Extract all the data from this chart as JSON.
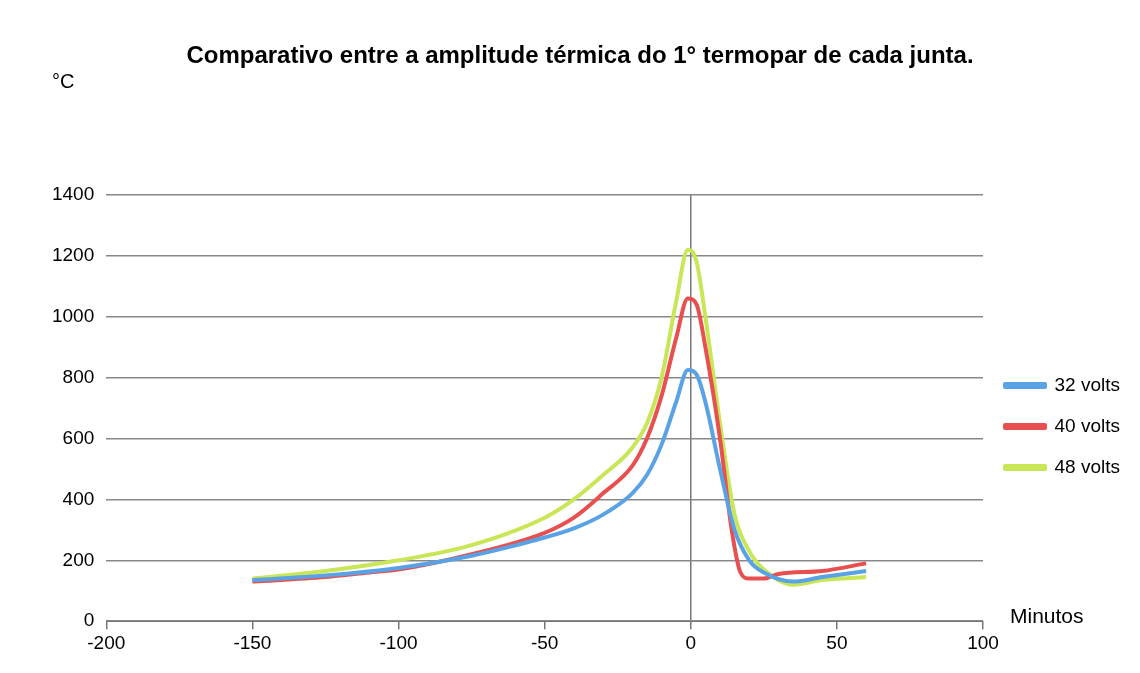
{
  "chart_data": {
    "type": "line",
    "title": "Comparativo entre a amplitude térmica do 1° termopar de cada junta.",
    "ylabel": "°C",
    "xlabel": "Minutos",
    "xlim": [
      -200,
      100
    ],
    "xticks": [
      -200,
      -150,
      -100,
      -50,
      0,
      50,
      100
    ],
    "ylim": [
      0,
      1400
    ],
    "yticks": [
      0,
      200,
      400,
      600,
      800,
      1000,
      1200,
      1400
    ],
    "grid": "y",
    "legend": "right",
    "marker": "none",
    "series": [
      {
        "name": "32 volts",
        "color": "#5aa2e6",
        "x": [
          -150,
          -125,
          -100,
          -75,
          -50,
          -40,
          -30,
          -20,
          -15,
          -10,
          -5,
          -1,
          2,
          5,
          10,
          15,
          20,
          25,
          35,
          45,
          60
        ],
        "values": [
          135,
          150,
          175,
          215,
          275,
          305,
          350,
          420,
          480,
          580,
          720,
          825,
          810,
          720,
          500,
          300,
          200,
          160,
          130,
          145,
          165
        ]
      },
      {
        "name": "40 volts",
        "color": "#e8504f",
        "x": [
          -150,
          -125,
          -110,
          -100,
          -75,
          -50,
          -40,
          -30,
          -20,
          -15,
          -10,
          -5,
          -1,
          2,
          5,
          10,
          14,
          17,
          20,
          25,
          30,
          45,
          60
        ],
        "values": [
          130,
          145,
          160,
          170,
          220,
          290,
          340,
          420,
          510,
          600,
          740,
          930,
          1060,
          1040,
          900,
          600,
          300,
          160,
          140,
          140,
          155,
          165,
          190
        ]
      },
      {
        "name": "48 volts",
        "color": "#c8e655",
        "x": [
          -150,
          -125,
          -100,
          -75,
          -50,
          -40,
          -30,
          -20,
          -15,
          -10,
          -5,
          -1,
          2,
          5,
          10,
          15,
          20,
          25,
          35,
          45,
          60
        ],
        "values": [
          140,
          165,
          200,
          250,
          340,
          400,
          480,
          570,
          650,
          800,
          1050,
          1220,
          1180,
          1000,
          650,
          350,
          230,
          170,
          120,
          135,
          145
        ]
      }
    ]
  }
}
